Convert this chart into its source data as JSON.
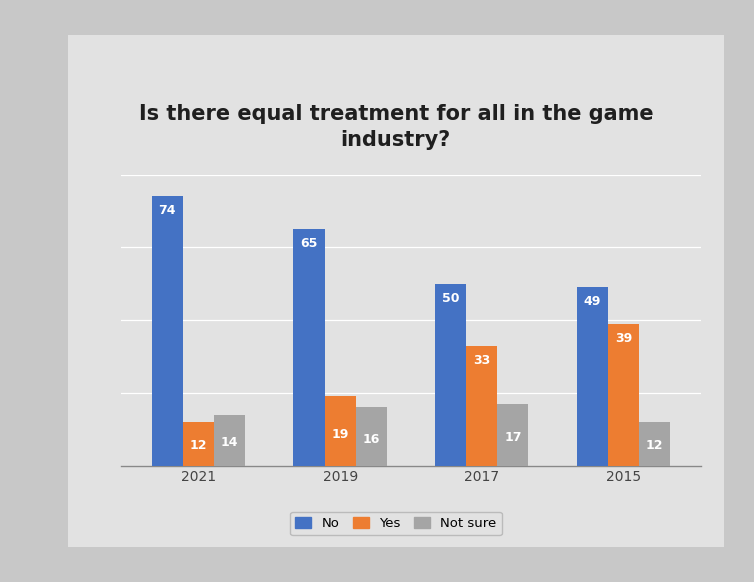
{
  "title": "Is there equal treatment for all in the game\nindustry?",
  "categories": [
    "2021",
    "2019",
    "2017",
    "2015"
  ],
  "series": {
    "No": [
      74,
      65,
      50,
      49
    ],
    "Yes": [
      12,
      19,
      33,
      39
    ],
    "Not sure": [
      14,
      16,
      17,
      12
    ]
  },
  "colors": {
    "No": "#4472C4",
    "Yes": "#ED7D31",
    "Not sure": "#A5A5A5"
  },
  "ylim": [
    0,
    80
  ],
  "bar_width": 0.22,
  "label_fontsize": 9,
  "title_fontsize": 15,
  "tick_fontsize": 10,
  "legend_fontsize": 9.5,
  "outer_bg_color": "#C8C8C8",
  "card_bg_color": "#E2E2E2",
  "plot_bg_color": "#DADADA",
  "grid_color": "#FFFFFF",
  "title_color": "#1F1F1F",
  "value_label_color": "#FFFFFF"
}
